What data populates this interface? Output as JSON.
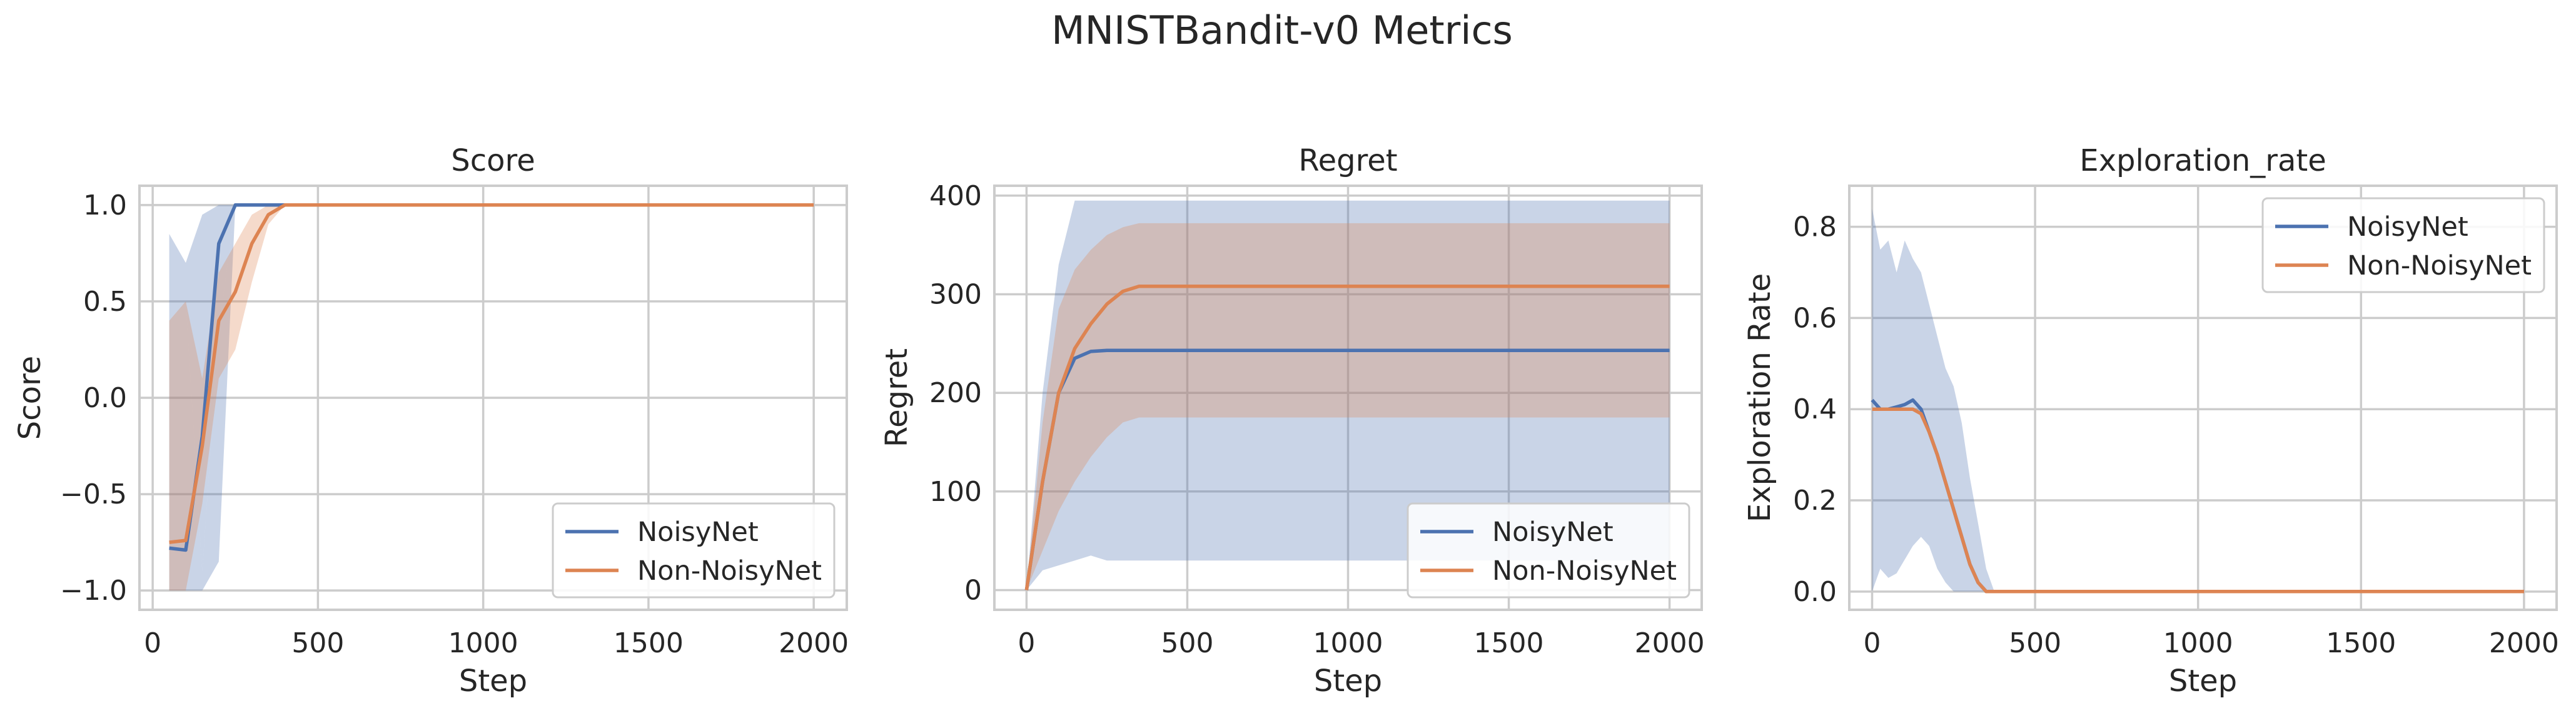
{
  "suptitle": "MNISTBandit-v0 Metrics",
  "colors": {
    "noisy": "#4c72b0",
    "nonnoisy": "#dd8452",
    "grid": "#cccccc",
    "frame": "#cccccc",
    "text": "#262626"
  },
  "chart_data": [
    {
      "type": "line",
      "title": "Score",
      "xlabel": "Step",
      "ylabel": "Score",
      "xlim": [
        -40,
        2100
      ],
      "ylim": [
        -1.1,
        1.1
      ],
      "xticks": [
        0,
        500,
        1000,
        1500,
        2000
      ],
      "yticks": [
        -1.0,
        -0.5,
        0.0,
        0.5,
        1.0
      ],
      "ytick_labels": [
        "−1.0",
        "−0.5",
        "0.0",
        "0.5",
        "1.0"
      ],
      "legend": {
        "position": "lower-right",
        "entries": [
          "NoisyNet",
          "Non-NoisyNet"
        ]
      },
      "series": [
        {
          "name": "NoisyNet",
          "x": [
            50,
            100,
            150,
            200,
            250,
            300,
            350,
            400,
            2000
          ],
          "y": [
            -0.78,
            -0.79,
            -0.2,
            0.8,
            1.0,
            1.0,
            1.0,
            1.0,
            1.0
          ],
          "band_low": [
            0.4,
            0.5,
            -0.9,
            0.35,
            1.0,
            1.0,
            1.0,
            1.0,
            1.0
          ],
          "band_high": [
            0.85,
            0.7,
            0.95,
            1.0,
            1.0,
            1.0,
            1.0,
            1.0,
            1.0
          ],
          "band_low2": [
            -1.0,
            -1.0,
            -1.0,
            -0.85,
            1.0,
            1.0,
            1.0,
            1.0,
            1.0
          ]
        },
        {
          "name": "Non-NoisyNet",
          "x": [
            50,
            100,
            150,
            200,
            250,
            300,
            350,
            400,
            2000
          ],
          "y": [
            -0.75,
            -0.74,
            -0.25,
            0.4,
            0.55,
            0.8,
            0.95,
            1.0,
            1.0
          ],
          "band_low": [
            -1.0,
            -1.0,
            -0.55,
            0.1,
            0.25,
            0.6,
            0.9,
            1.0,
            1.0
          ],
          "band_high": [
            0.4,
            0.5,
            0.1,
            0.65,
            0.8,
            0.95,
            1.0,
            1.0,
            1.0
          ]
        }
      ]
    },
    {
      "type": "line",
      "title": "Regret",
      "xlabel": "Step",
      "ylabel": "Regret",
      "xlim": [
        -100,
        2100
      ],
      "ylim": [
        -20,
        410
      ],
      "xticks": [
        0,
        500,
        1000,
        1500,
        2000
      ],
      "yticks": [
        0,
        100,
        200,
        300,
        400
      ],
      "ytick_labels": [
        "0",
        "100",
        "200",
        "300",
        "400"
      ],
      "legend": {
        "position": "lower-right",
        "entries": [
          "NoisyNet",
          "Non-NoisyNet"
        ]
      },
      "series": [
        {
          "name": "NoisyNet",
          "x": [
            0,
            50,
            100,
            150,
            200,
            250,
            2000
          ],
          "y": [
            0,
            110,
            200,
            235,
            242,
            243,
            243
          ],
          "band_low": [
            0,
            20,
            25,
            30,
            35,
            30,
            30
          ],
          "band_high": [
            0,
            200,
            330,
            395,
            395,
            395,
            395
          ]
        },
        {
          "name": "Non-NoisyNet",
          "x": [
            0,
            50,
            100,
            150,
            200,
            250,
            300,
            350,
            2000
          ],
          "y": [
            0,
            110,
            200,
            245,
            270,
            290,
            303,
            308,
            308
          ],
          "band_low": [
            0,
            40,
            80,
            110,
            135,
            155,
            170,
            175,
            175
          ],
          "band_high": [
            0,
            170,
            285,
            325,
            345,
            360,
            368,
            372,
            372
          ]
        }
      ]
    },
    {
      "type": "line",
      "title": "Exploration_rate",
      "xlabel": "Step",
      "ylabel": "Exploration Rate",
      "xlim": [
        -70,
        2100
      ],
      "ylim": [
        -0.04,
        0.89
      ],
      "xticks": [
        0,
        500,
        1000,
        1500,
        2000
      ],
      "yticks": [
        0.0,
        0.2,
        0.4,
        0.6,
        0.8
      ],
      "ytick_labels": [
        "0.0",
        "0.2",
        "0.4",
        "0.6",
        "0.8"
      ],
      "legend": {
        "position": "top-right",
        "entries": [
          "NoisyNet",
          "Non-NoisyNet"
        ]
      },
      "series": [
        {
          "name": "NoisyNet",
          "x": [
            0,
            25,
            50,
            75,
            100,
            125,
            150,
            175,
            200,
            225,
            250,
            275,
            300,
            325,
            350,
            375,
            2000
          ],
          "y": [
            0.42,
            0.4,
            0.4,
            0.405,
            0.41,
            0.42,
            0.4,
            0.35,
            0.3,
            0.24,
            0.18,
            0.12,
            0.06,
            0.02,
            0.0,
            0.0,
            0.0
          ],
          "band_low": [
            0.0,
            0.05,
            0.03,
            0.04,
            0.07,
            0.1,
            0.12,
            0.1,
            0.05,
            0.02,
            0.0,
            0.0,
            0.0,
            0.0,
            0.0,
            0.0,
            0.0
          ],
          "band_high": [
            0.84,
            0.75,
            0.77,
            0.7,
            0.77,
            0.73,
            0.7,
            0.63,
            0.56,
            0.49,
            0.45,
            0.37,
            0.25,
            0.15,
            0.05,
            0.0,
            0.0
          ]
        },
        {
          "name": "Non-NoisyNet",
          "x": [
            0,
            25,
            50,
            75,
            100,
            125,
            150,
            175,
            200,
            225,
            250,
            275,
            300,
            325,
            350,
            375,
            2000
          ],
          "y": [
            0.4,
            0.4,
            0.4,
            0.4,
            0.4,
            0.4,
            0.39,
            0.35,
            0.3,
            0.24,
            0.18,
            0.12,
            0.06,
            0.02,
            0.0,
            0.0,
            0.0
          ]
        }
      ]
    }
  ]
}
